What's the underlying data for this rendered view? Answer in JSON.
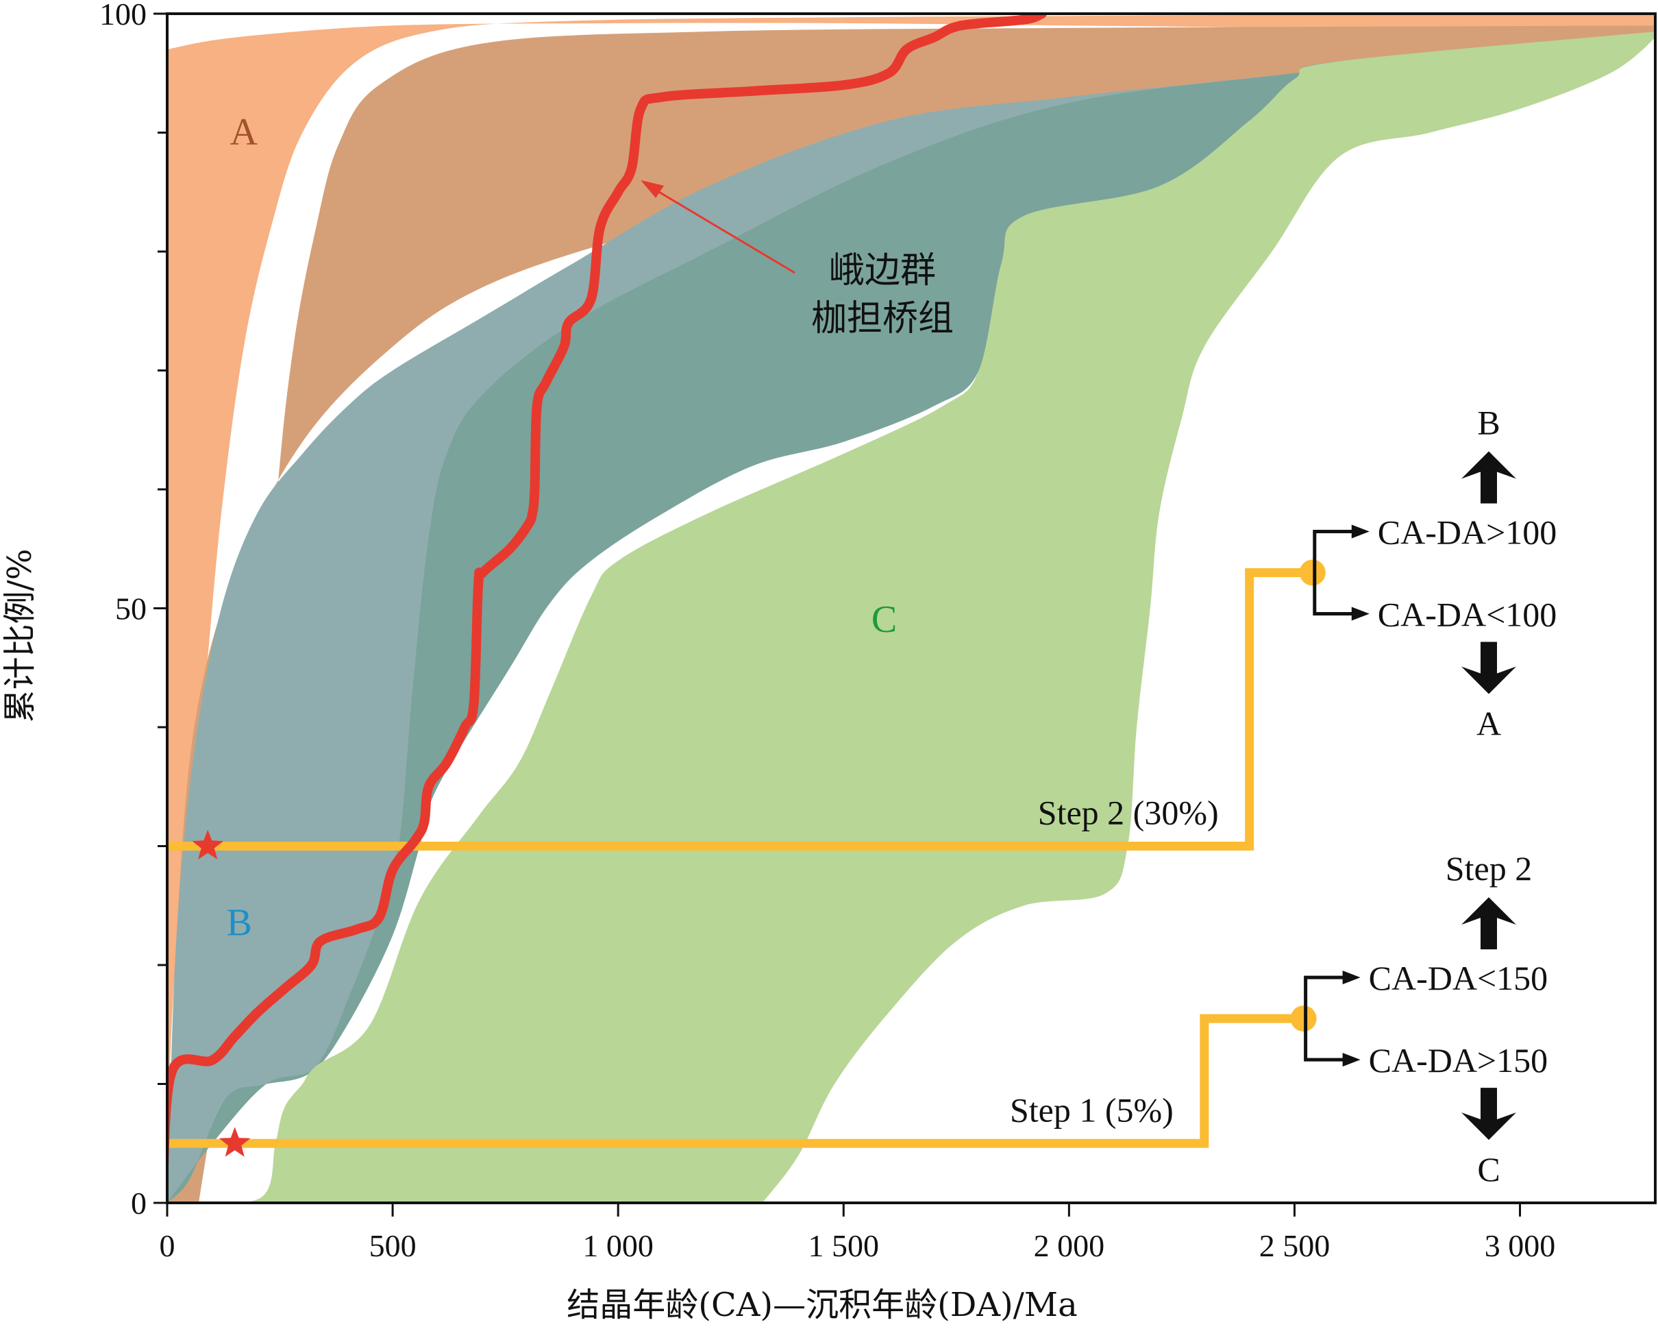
{
  "chart_data": {
    "type": "area",
    "xlabel": "结晶年龄(CA)—沉积年龄(DA)/Ma",
    "ylabel": "累计比例/%",
    "xlim": [
      0,
      3300
    ],
    "ylim": [
      0,
      100
    ],
    "x_ticks": [
      {
        "value": 0,
        "label": "0"
      },
      {
        "value": 500,
        "label": "500"
      },
      {
        "value": 1000,
        "label": "1 000"
      },
      {
        "value": 1500,
        "label": "1 500"
      },
      {
        "value": 2000,
        "label": "2 000"
      },
      {
        "value": 2500,
        "label": "2 500"
      },
      {
        "value": 3000,
        "label": "3 000"
      }
    ],
    "y_ticks": [
      {
        "value": 0,
        "label": "0"
      },
      {
        "value": 50,
        "label": "50"
      },
      {
        "value": 100,
        "label": "100"
      }
    ],
    "y_minor_ticks": [
      10,
      20,
      30,
      40,
      60,
      70,
      80,
      90
    ],
    "regions": [
      {
        "label": "A",
        "fill": "#f7b183",
        "label_color": "#a0522d",
        "label_at": [
          170,
          89
        ],
        "left": [
          [
            0,
            0
          ],
          [
            10,
            15
          ],
          [
            40,
            30
          ],
          [
            80,
            42
          ],
          [
            120,
            58
          ],
          [
            170,
            72
          ],
          [
            230,
            82
          ],
          [
            300,
            90
          ],
          [
            420,
            96
          ],
          [
            600,
            98.6
          ],
          [
            900,
            99.4
          ],
          [
            1500,
            99.7
          ],
          [
            2500,
            99.9
          ],
          [
            3300,
            100
          ]
        ],
        "right": [
          [
            3300,
            100
          ],
          [
            3300,
            98
          ],
          [
            3000,
            98.4
          ],
          [
            2500,
            98.8
          ],
          [
            2000,
            99
          ],
          [
            1500,
            99.2
          ],
          [
            1000,
            99.2
          ],
          [
            500,
            99
          ],
          [
            150,
            98
          ],
          [
            0,
            97
          ]
        ]
      },
      {
        "label": "",
        "fill": "#d5a078",
        "left": [
          [
            70,
            0
          ],
          [
            180,
            28
          ],
          [
            240,
            58
          ],
          [
            280,
            72
          ],
          [
            330,
            82
          ],
          [
            380,
            89
          ],
          [
            470,
            94
          ],
          [
            700,
            97.5
          ],
          [
            1200,
            98.5
          ],
          [
            2000,
            98.8
          ],
          [
            3300,
            99
          ]
        ],
        "right": [
          [
            3300,
            99
          ],
          [
            3300,
            98.5
          ],
          [
            2800,
            96.5
          ],
          [
            2300,
            93
          ],
          [
            1800,
            88.5
          ],
          [
            1400,
            85
          ],
          [
            1000,
            81
          ],
          [
            700,
            77
          ],
          [
            500,
            72
          ],
          [
            300,
            64
          ],
          [
            150,
            53
          ],
          [
            60,
            40
          ],
          [
            20,
            22
          ],
          [
            10,
            10
          ],
          [
            0,
            0
          ]
        ]
      },
      {
        "label": "B",
        "fill": "#8fadae",
        "label_color": "#1e8fc9",
        "label_at": [
          160,
          22.5
        ],
        "left": [
          [
            0,
            0
          ],
          [
            20,
            22
          ],
          [
            60,
            38
          ],
          [
            120,
            50
          ],
          [
            200,
            58
          ],
          [
            300,
            63
          ],
          [
            400,
            67
          ],
          [
            500,
            70
          ],
          [
            700,
            74.5
          ],
          [
            900,
            79
          ],
          [
            1200,
            85.5
          ],
          [
            1600,
            91
          ],
          [
            2000,
            93
          ],
          [
            2500,
            95
          ],
          [
            2800,
            96.5
          ],
          [
            3300,
            98
          ]
        ],
        "right": [
          [
            3300,
            98
          ],
          [
            2600,
            96
          ],
          [
            2500,
            94.5
          ],
          [
            2400,
            91
          ],
          [
            2200,
            85.5
          ],
          [
            1900,
            83
          ],
          [
            1850,
            79
          ],
          [
            1800,
            70
          ],
          [
            1700,
            67
          ],
          [
            1500,
            64
          ],
          [
            1300,
            62
          ],
          [
            1100,
            58
          ],
          [
            940,
            54
          ],
          [
            850,
            50.5
          ],
          [
            760,
            45
          ],
          [
            600,
            35
          ],
          [
            560,
            30
          ],
          [
            500,
            22.5
          ],
          [
            400,
            15
          ],
          [
            320,
            11
          ],
          [
            220,
            10
          ],
          [
            150,
            9.5
          ],
          [
            110,
            7.5
          ],
          [
            50,
            2
          ],
          [
            0,
            0
          ]
        ]
      },
      {
        "label": "",
        "fill": "#7aa39b",
        "left": [
          [
            0,
            0
          ],
          [
            100,
            5
          ],
          [
            220,
            10
          ],
          [
            330,
            11.5
          ],
          [
            410,
            18
          ],
          [
            470,
            24
          ],
          [
            500,
            28
          ],
          [
            520,
            32
          ],
          [
            545,
            43.5
          ],
          [
            580,
            56
          ],
          [
            620,
            63
          ],
          [
            700,
            68
          ],
          [
            900,
            74
          ],
          [
            1200,
            80
          ],
          [
            1600,
            87.5
          ],
          [
            2000,
            92.5
          ],
          [
            2500,
            95
          ],
          [
            2800,
            96.5
          ],
          [
            3300,
            98
          ]
        ],
        "right": [
          [
            3300,
            98
          ],
          [
            2600,
            96
          ],
          [
            2500,
            94.5
          ],
          [
            2400,
            91
          ],
          [
            2200,
            85.5
          ],
          [
            1900,
            83
          ],
          [
            1850,
            79
          ],
          [
            1800,
            70
          ],
          [
            1700,
            67
          ],
          [
            1500,
            64
          ],
          [
            1300,
            62
          ],
          [
            1100,
            58
          ],
          [
            940,
            54
          ],
          [
            850,
            50.5
          ],
          [
            760,
            45
          ],
          [
            600,
            35
          ],
          [
            560,
            30
          ],
          [
            500,
            22.5
          ],
          [
            400,
            15
          ],
          [
            320,
            11
          ],
          [
            220,
            10
          ],
          [
            150,
            9.5
          ],
          [
            110,
            7.5
          ],
          [
            50,
            2
          ],
          [
            0,
            0
          ]
        ]
      },
      {
        "label": "C",
        "fill": "#b8d696",
        "label_color": "#1d9a3a",
        "label_at": [
          1590,
          48
        ],
        "left": [
          [
            60,
            0
          ],
          [
            210,
            0.5
          ],
          [
            240,
            5
          ],
          [
            260,
            8
          ],
          [
            300,
            10
          ],
          [
            330,
            11.5
          ],
          [
            450,
            15
          ],
          [
            560,
            25.5
          ],
          [
            690,
            32.5
          ],
          [
            780,
            37
          ],
          [
            850,
            43
          ],
          [
            940,
            51
          ],
          [
            1000,
            54
          ],
          [
            1200,
            58
          ],
          [
            1500,
            63
          ],
          [
            1720,
            67
          ],
          [
            1800,
            70
          ],
          [
            1850,
            79
          ],
          [
            1900,
            83
          ],
          [
            2200,
            85.5
          ],
          [
            2400,
            91
          ],
          [
            2500,
            94.5
          ],
          [
            2600,
            96
          ],
          [
            3300,
            98.5
          ]
        ],
        "right": [
          [
            3300,
            98.5
          ],
          [
            3300,
            98
          ],
          [
            3200,
            95
          ],
          [
            3000,
            92
          ],
          [
            2800,
            90
          ],
          [
            2600,
            88
          ],
          [
            2450,
            80
          ],
          [
            2300,
            72
          ],
          [
            2250,
            66
          ],
          [
            2200,
            58
          ],
          [
            2180,
            50
          ],
          [
            2150,
            40
          ],
          [
            2130,
            30
          ],
          [
            2080,
            26
          ],
          [
            1900,
            25
          ],
          [
            1750,
            22
          ],
          [
            1600,
            16
          ],
          [
            1480,
            10
          ],
          [
            1400,
            4
          ],
          [
            1320,
            0
          ]
        ]
      }
    ],
    "series": [
      {
        "name": "峨边群 枷担桥组",
        "color": "#e8392f",
        "points": [
          [
            -10,
            0
          ],
          [
            10,
            11
          ],
          [
            100,
            12
          ],
          [
            150,
            14
          ],
          [
            200,
            16
          ],
          [
            260,
            18
          ],
          [
            320,
            20
          ],
          [
            340,
            22
          ],
          [
            420,
            23
          ],
          [
            470,
            24
          ],
          [
            500,
            28
          ],
          [
            550,
            30.5
          ],
          [
            570,
            32
          ],
          [
            580,
            35
          ],
          [
            620,
            37
          ],
          [
            660,
            40
          ],
          [
            680,
            42
          ],
          [
            690,
            52
          ],
          [
            700,
            53
          ],
          [
            760,
            55
          ],
          [
            800,
            57
          ],
          [
            810,
            58
          ],
          [
            815,
            60
          ],
          [
            820,
            67
          ],
          [
            840,
            69
          ],
          [
            880,
            72
          ],
          [
            890,
            74
          ],
          [
            940,
            76
          ],
          [
            960,
            82
          ],
          [
            1000,
            85
          ],
          [
            1030,
            87
          ],
          [
            1050,
            92
          ],
          [
            1100,
            93
          ],
          [
            1300,
            93.5
          ],
          [
            1500,
            94
          ],
          [
            1600,
            95
          ],
          [
            1640,
            97
          ],
          [
            1700,
            98
          ],
          [
            1760,
            99
          ],
          [
            1900,
            99.5
          ],
          [
            1940,
            100
          ]
        ]
      }
    ],
    "steps": [
      {
        "label": "Step 1 (5%)",
        "y_pct": 5,
        "corner_x": 2300,
        "riser_top_pct": 15.5,
        "node_x": 2520,
        "branch_up": "CA-DA<150",
        "branch_down": "CA-DA>150",
        "up_target": "Step 2",
        "down_target": "C",
        "start_x": 0,
        "star_x": 150
      },
      {
        "label": "Step 2 (30%)",
        "y_pct": 30,
        "corner_x": 2400,
        "riser_top_pct": 53,
        "node_x": 2540,
        "branch_up": "CA-DA>100",
        "branch_down": "CA-DA<100",
        "up_target": "B",
        "down_target": "A",
        "start_x": 0,
        "star_x": 90
      }
    ],
    "annotation": {
      "lines": [
        "峨边群",
        "枷担桥组"
      ],
      "arrow_to": [
        1050,
        86
      ]
    },
    "colors": {
      "step": "#fbbc34",
      "star": "#e8392f",
      "curve": "#e8392f"
    }
  }
}
